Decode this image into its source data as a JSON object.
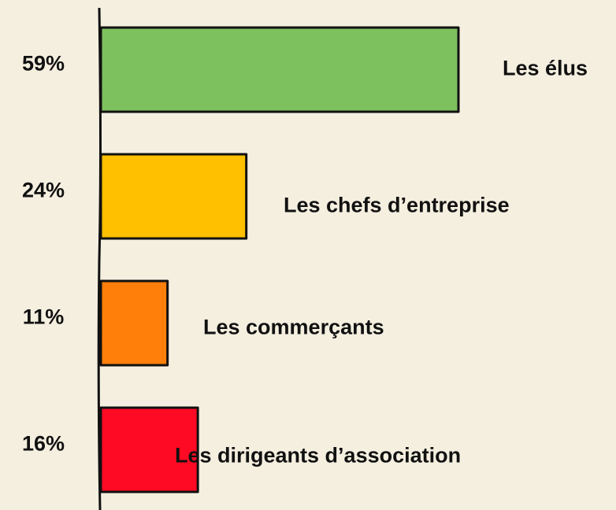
{
  "chart_data": {
    "type": "bar",
    "orientation": "horizontal",
    "categories": [
      "Les élus",
      "Les chefs d’entreprise",
      "Les commerçants",
      "Les dirigeants d’association"
    ],
    "values": [
      59,
      24,
      11,
      16
    ],
    "value_labels": [
      "59%",
      "24%",
      "11%",
      "16%"
    ],
    "colors": [
      "#7dc15f",
      "#ffc000",
      "#ff7f0a",
      "#ff0a24"
    ]
  }
}
